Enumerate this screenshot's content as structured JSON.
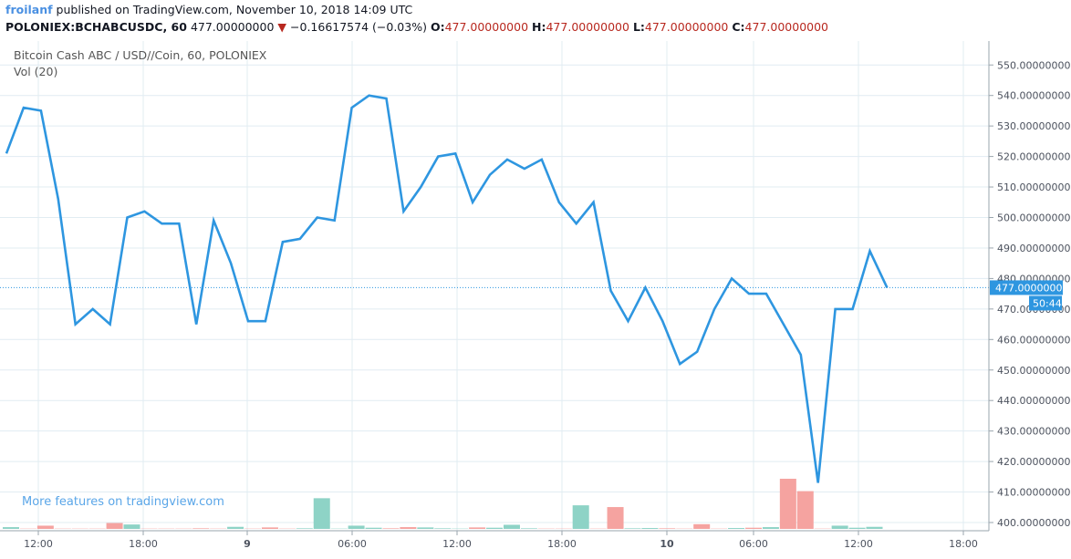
{
  "header": {
    "user": "froilanf",
    "published": "published on TradingView.com, November 10, 2018 14:09 UTC",
    "symbol": "POLONIEX:BCHABCUSDC, 60",
    "last": "477.00000000",
    "change_arrow": "▼",
    "change": "−0.16617574 (−0.03%)",
    "o_label": "O:",
    "o_value": "477.00000000",
    "h_label": "H:",
    "h_value": "477.00000000",
    "l_label": "L:",
    "l_value": "477.00000000",
    "c_label": "C:",
    "c_value": "477.00000000"
  },
  "chart_title": "Bitcoin Cash ABC / USD//Coin, 60, POLONIEX",
  "vol_label": "Vol (20)",
  "promo": "More features on tradingview.com",
  "colors": {
    "line": "#2e96e0",
    "vol_up": "#8ed3c6",
    "vol_down": "#f5a3a0",
    "grid": "#e1ecf2",
    "price_label_bg": "#2e96e0"
  },
  "chart_data": {
    "type": "line",
    "title": "Bitcoin Cash ABC / USD//Coin, 60, POLONIEX",
    "xlabel": "",
    "ylabel": "",
    "ylim": [
      396,
      553
    ],
    "x_ticks": [
      "12:00",
      "18:00",
      "9",
      "06:00",
      "12:00",
      "18:00",
      "10",
      "06:00",
      "12:00",
      "18:00"
    ],
    "y_ticks": [
      "400.00000000",
      "410.00000000",
      "420.00000000",
      "430.00000000",
      "440.00000000",
      "450.00000000",
      "460.00000000",
      "470.00000000",
      "480.00000000",
      "490.00000000",
      "500.00000000",
      "510.00000000",
      "520.00000000",
      "530.00000000",
      "540.00000000",
      "550.00000000"
    ],
    "last_price_label": "477.00000000",
    "countdown_label": "50:44",
    "series": [
      {
        "values": [
          521,
          536,
          535,
          506,
          465,
          470,
          465,
          500,
          502,
          498,
          498,
          465,
          499,
          485,
          466,
          466,
          492,
          493,
          500,
          499,
          536,
          540,
          539,
          502,
          510,
          520,
          521,
          505,
          514,
          519,
          516,
          519,
          505,
          498,
          505,
          476,
          466,
          477,
          466,
          452,
          456,
          470,
          480,
          475,
          475,
          465,
          455,
          413,
          470,
          470,
          489,
          477
        ]
      }
    ],
    "volume": {
      "values": [
        3.0,
        0.5,
        5.5,
        0.5,
        0.5,
        0.5,
        10.0,
        7.5,
        0.5,
        0.5,
        0.5,
        1.0,
        0.5,
        3.5,
        0.5,
        2.5,
        0.5,
        1.0,
        52.0,
        0.5,
        5.5,
        2.0,
        1.0,
        3.0,
        2.5,
        1.0,
        0.5,
        2.5,
        2.0,
        7.0,
        1.0,
        0.5,
        0.5,
        40.0,
        0.5,
        37.0,
        1.0,
        1.5,
        1.0,
        0.5,
        8.0,
        0.5,
        1.5,
        2.0,
        3.0,
        85.0,
        64.0,
        0.5,
        5.5,
        2.0,
        3.5,
        0.0
      ],
      "up": [
        true,
        false,
        false,
        false,
        false,
        false,
        false,
        true,
        false,
        false,
        false,
        false,
        false,
        true,
        false,
        false,
        false,
        true,
        true,
        true,
        true,
        true,
        false,
        false,
        true,
        true,
        true,
        false,
        true,
        true,
        true,
        false,
        false,
        true,
        false,
        false,
        true,
        true,
        false,
        false,
        false,
        false,
        true,
        false,
        true,
        false,
        false,
        false,
        true,
        true,
        true,
        true
      ]
    }
  }
}
